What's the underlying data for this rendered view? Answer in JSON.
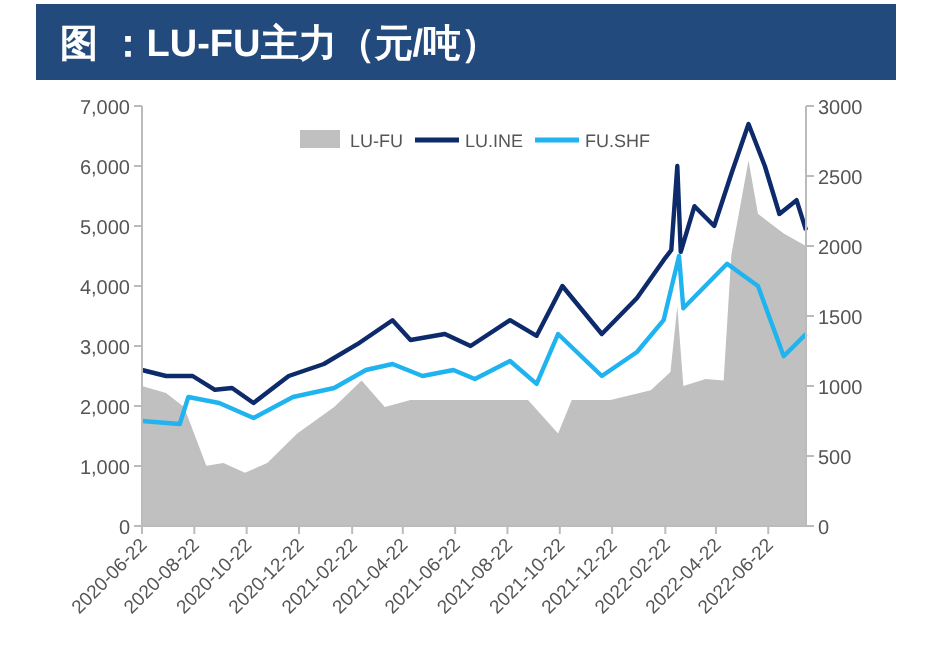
{
  "chart_data": {
    "type": "line",
    "title": "图 ：LU-FU主力（元/吨）",
    "legend": "top",
    "grid": false,
    "xlim": [
      "2020-06-22",
      "2022-08-05"
    ],
    "xticks": [
      "2020-06-22",
      "2020-08-22",
      "2020-10-22",
      "2020-12-22",
      "2021-02-22",
      "2021-04-22",
      "2021-06-22",
      "2021-08-22",
      "2021-10-22",
      "2021-12-22",
      "2022-02-22",
      "2022-04-22",
      "2022-06-22"
    ],
    "ylim": [
      0,
      7000
    ],
    "yticks": [
      0,
      {
        "value": 1000,
        "label": "1,000"
      },
      {
        "value": 2000,
        "label": "2,000"
      },
      {
        "value": 3000,
        "label": "3,000"
      },
      {
        "value": 4000,
        "label": "4,000"
      },
      {
        "value": 5000,
        "label": "5,000"
      },
      {
        "value": 6000,
        "label": "6,000"
      },
      {
        "value": 7000,
        "label": "7,000"
      }
    ],
    "y2lim": [
      0,
      3000
    ],
    "y2ticks": [
      0,
      500,
      1000,
      1500,
      2000,
      2500,
      3000
    ],
    "series": [
      {
        "name": "LU-FU",
        "type": "area",
        "axis": "y2",
        "color": "#c0c0c0",
        "x": [
          "2020-06-22",
          "2020-07-20",
          "2020-08-10",
          "2020-09-05",
          "2020-09-25",
          "2020-10-20",
          "2020-11-15",
          "2020-12-20",
          "2021-02-01",
          "2021-03-05",
          "2021-04-01",
          "2021-05-01",
          "2021-06-15",
          "2021-08-01",
          "2021-09-15",
          "2021-10-20",
          "2021-11-05",
          "2021-12-20",
          "2022-02-05",
          "2022-02-28",
          "2022-03-08",
          "2022-03-15",
          "2022-04-10",
          "2022-05-01",
          "2022-05-10",
          "2022-05-30",
          "2022-06-10",
          "2022-07-10",
          "2022-08-05"
        ],
        "values": [
          1000,
          950,
          850,
          430,
          450,
          380,
          450,
          660,
          850,
          1040,
          850,
          900,
          900,
          900,
          900,
          660,
          900,
          900,
          970,
          1100,
          1570,
          1000,
          1050,
          1040,
          1940,
          2610,
          2230,
          2090,
          2000
        ]
      },
      {
        "name": "LU.INE",
        "color": "#0d2a6b",
        "x": [
          "2020-06-22",
          "2020-07-20",
          "2020-08-20",
          "2020-09-15",
          "2020-10-05",
          "2020-10-30",
          "2020-12-10",
          "2021-01-20",
          "2021-02-28",
          "2021-04-10",
          "2021-05-01",
          "2021-06-10",
          "2021-07-10",
          "2021-08-25",
          "2021-09-25",
          "2021-10-25",
          "2021-12-10",
          "2022-01-20",
          "2022-02-20",
          "2022-03-01",
          "2022-03-08",
          "2022-03-12",
          "2022-03-28",
          "2022-04-20",
          "2022-05-10",
          "2022-05-30",
          "2022-06-18",
          "2022-07-05",
          "2022-07-25",
          "2022-08-05"
        ],
        "values": [
          2600,
          2500,
          2500,
          2270,
          2300,
          2050,
          2500,
          2700,
          3030,
          3430,
          3100,
          3200,
          3000,
          3430,
          3170,
          4000,
          3200,
          3800,
          4430,
          4600,
          6000,
          4570,
          5330,
          5000,
          5870,
          6700,
          6000,
          5200,
          5430,
          4930
        ]
      },
      {
        "name": "FU.SHF",
        "color": "#1fb4f0",
        "x": [
          "2020-06-22",
          "2020-08-05",
          "2020-08-15",
          "2020-09-20",
          "2020-10-30",
          "2020-12-15",
          "2021-02-01",
          "2021-03-10",
          "2021-04-10",
          "2021-05-15",
          "2021-06-20",
          "2021-07-15",
          "2021-08-25",
          "2021-09-25",
          "2021-10-20",
          "2021-12-10",
          "2022-01-20",
          "2022-02-20",
          "2022-03-10",
          "2022-03-15",
          "2022-05-05",
          "2022-06-10",
          "2022-07-10",
          "2022-08-05"
        ],
        "values": [
          1750,
          1700,
          2150,
          2050,
          1800,
          2150,
          2300,
          2600,
          2700,
          2500,
          2600,
          2450,
          2750,
          2370,
          3200,
          2500,
          2900,
          3430,
          4500,
          3630,
          4370,
          4000,
          2830,
          3200
        ]
      }
    ]
  }
}
